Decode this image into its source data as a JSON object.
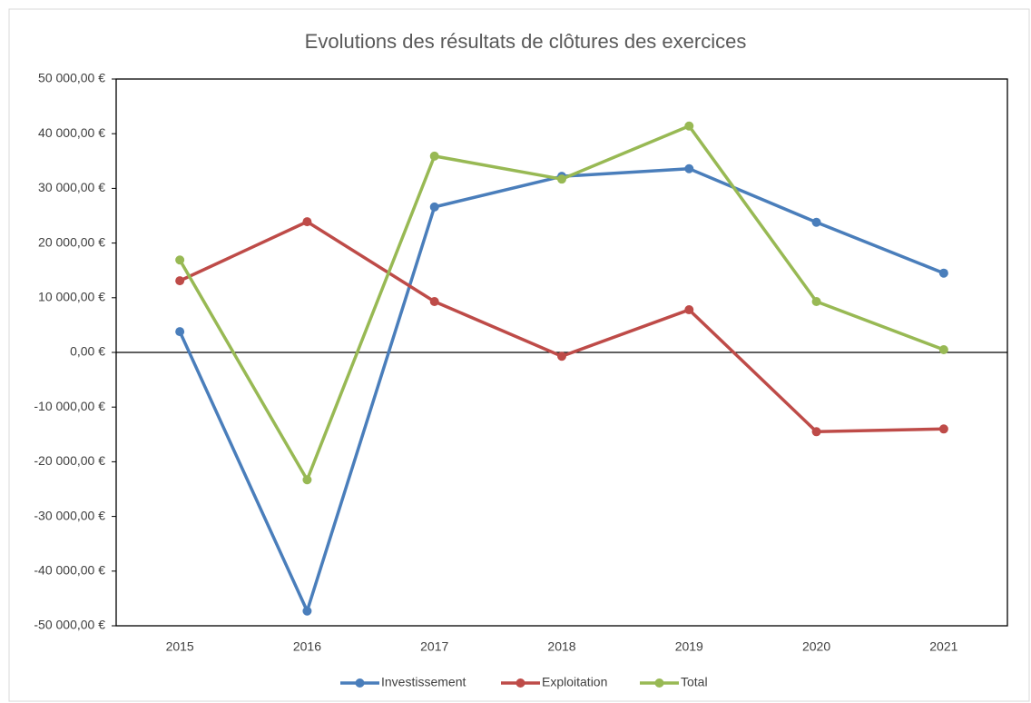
{
  "chart_data": {
    "type": "line",
    "title": "Evolutions des résultats de clôtures des exercices",
    "categories": [
      "2015",
      "2016",
      "2017",
      "2018",
      "2019",
      "2020",
      "2021"
    ],
    "series": [
      {
        "name": "Investissement",
        "color": "#4a7ebb",
        "values": [
          3800,
          -47300,
          26600,
          32200,
          33600,
          23800,
          14500
        ]
      },
      {
        "name": "Exploitation",
        "color": "#be4b48",
        "values": [
          13100,
          23900,
          9300,
          -700,
          7800,
          -14500,
          -14000
        ]
      },
      {
        "name": "Total",
        "color": "#98b954",
        "values": [
          16900,
          -23300,
          35900,
          31700,
          41400,
          9300,
          500
        ]
      }
    ],
    "ylim": [
      -50000,
      50000
    ],
    "yticks": [
      {
        "value": -50000,
        "label": "-50 000,00 €"
      },
      {
        "value": -40000,
        "label": "-40 000,00 €"
      },
      {
        "value": -30000,
        "label": "-30 000,00 €"
      },
      {
        "value": -20000,
        "label": "-20 000,00 €"
      },
      {
        "value": -10000,
        "label": "-10 000,00 €"
      },
      {
        "value": 0,
        "label": "0,00 €"
      },
      {
        "value": 10000,
        "label": "10 000,00 €"
      },
      {
        "value": 20000,
        "label": "20 000,00 €"
      },
      {
        "value": 30000,
        "label": "30 000,00 €"
      },
      {
        "value": 40000,
        "label": "40 000,00 €"
      },
      {
        "value": 50000,
        "label": "50 000,00 €"
      }
    ],
    "grid": false,
    "legend": "bottom"
  }
}
